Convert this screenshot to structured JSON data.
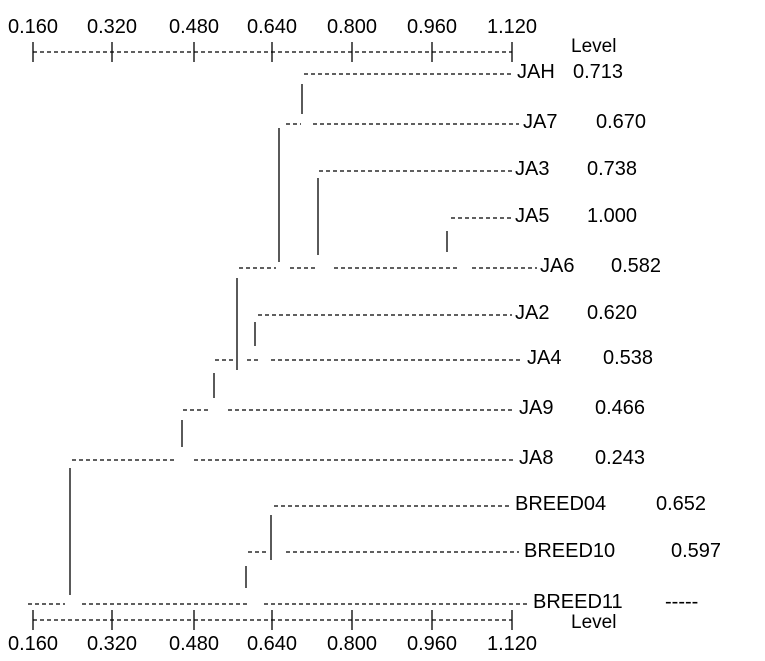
{
  "axis": {
    "ticks": [
      "0.160",
      "0.320",
      "0.480",
      "0.640",
      "0.800",
      "0.960",
      "1.120"
    ],
    "level_label": "Level"
  },
  "leaves": [
    {
      "label": "JAH",
      "level": "0.713"
    },
    {
      "label": "JA7",
      "level": "0.670"
    },
    {
      "label": "JA3",
      "level": "0.738"
    },
    {
      "label": "JA5",
      "level": "1.000"
    },
    {
      "label": "JA6",
      "level": "0.582"
    },
    {
      "label": "JA2",
      "level": "0.620"
    },
    {
      "label": "JA4",
      "level": "0.538"
    },
    {
      "label": "JA9",
      "level": "0.466"
    },
    {
      "label": "JA8",
      "level": "0.243"
    },
    {
      "label": "BREED04",
      "level": "0.652"
    },
    {
      "label": "BREED10",
      "level": "0.597"
    },
    {
      "label": "BREED11",
      "level": "-----"
    }
  ]
}
